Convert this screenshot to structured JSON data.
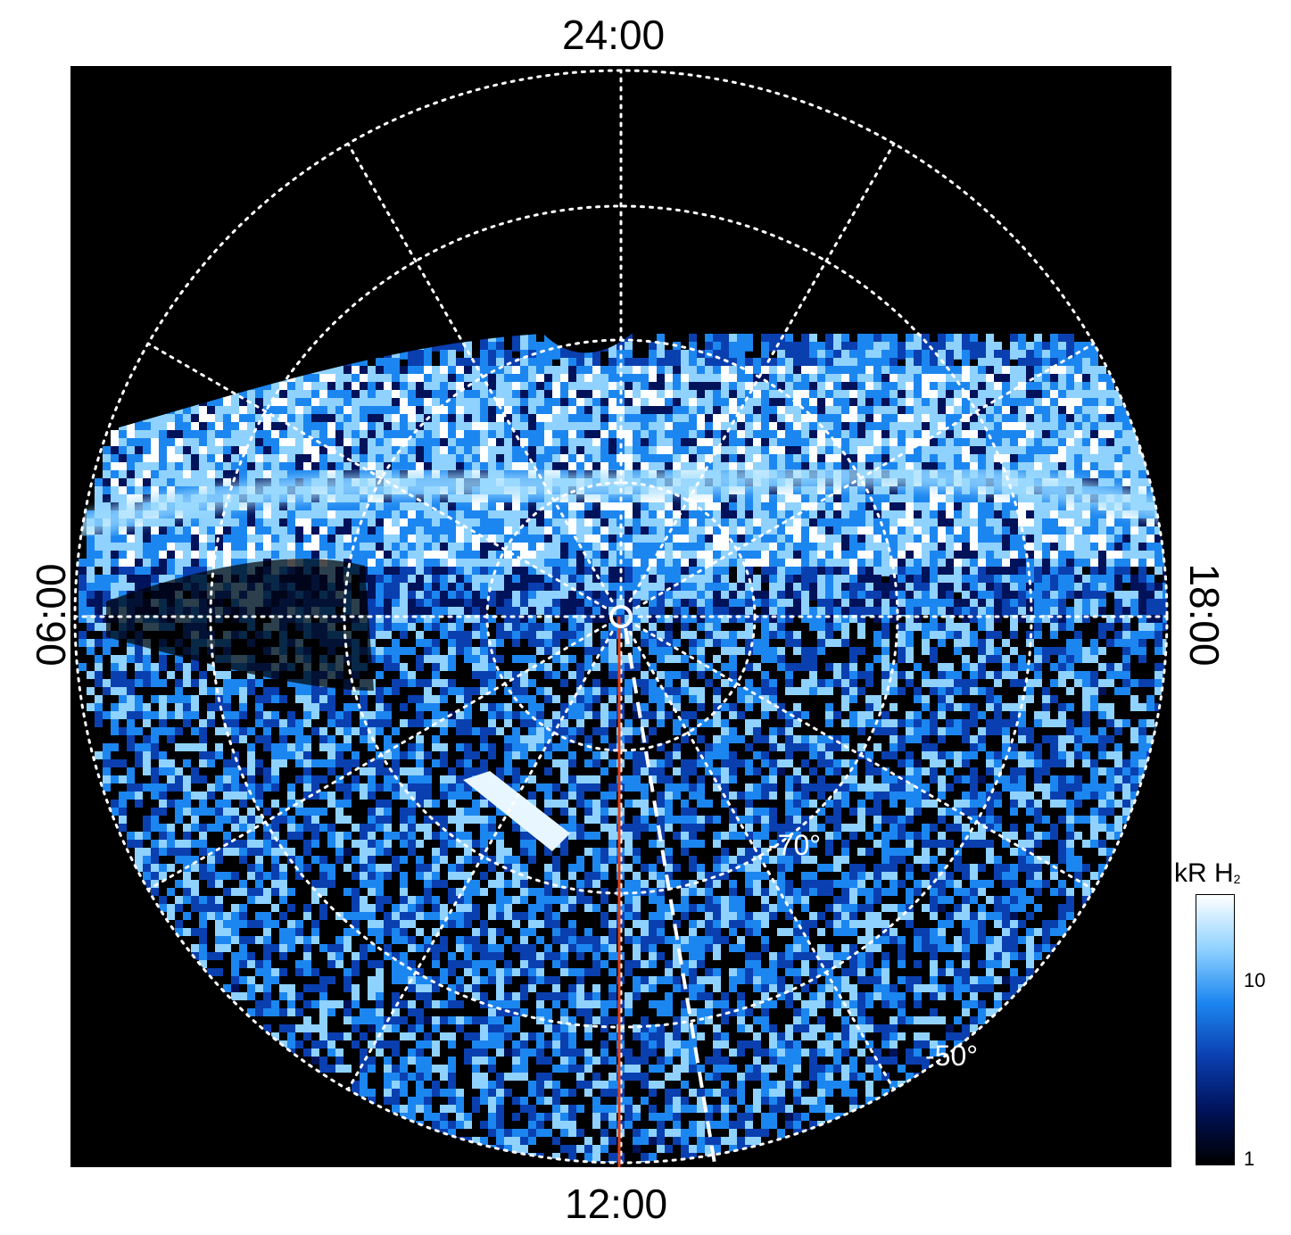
{
  "figure": {
    "local_time_labels": {
      "top": "24:00",
      "bottom": "12:00",
      "left": "06:00",
      "right": "18:00"
    },
    "latitude_labels": [
      "-70°",
      "-50°"
    ],
    "colorbar": {
      "title": "kR H",
      "title_sub": "2",
      "scale": "log",
      "tick_labels": [
        "1",
        "10"
      ],
      "colors": [
        "#000000",
        "#00125a",
        "#0a3fb0",
        "#1c86f0",
        "#8fd2ff",
        "#ffffff"
      ]
    },
    "meridian_line_color": "#e0401a",
    "grid_color": "#ffffff",
    "background_color": "#000000"
  }
}
